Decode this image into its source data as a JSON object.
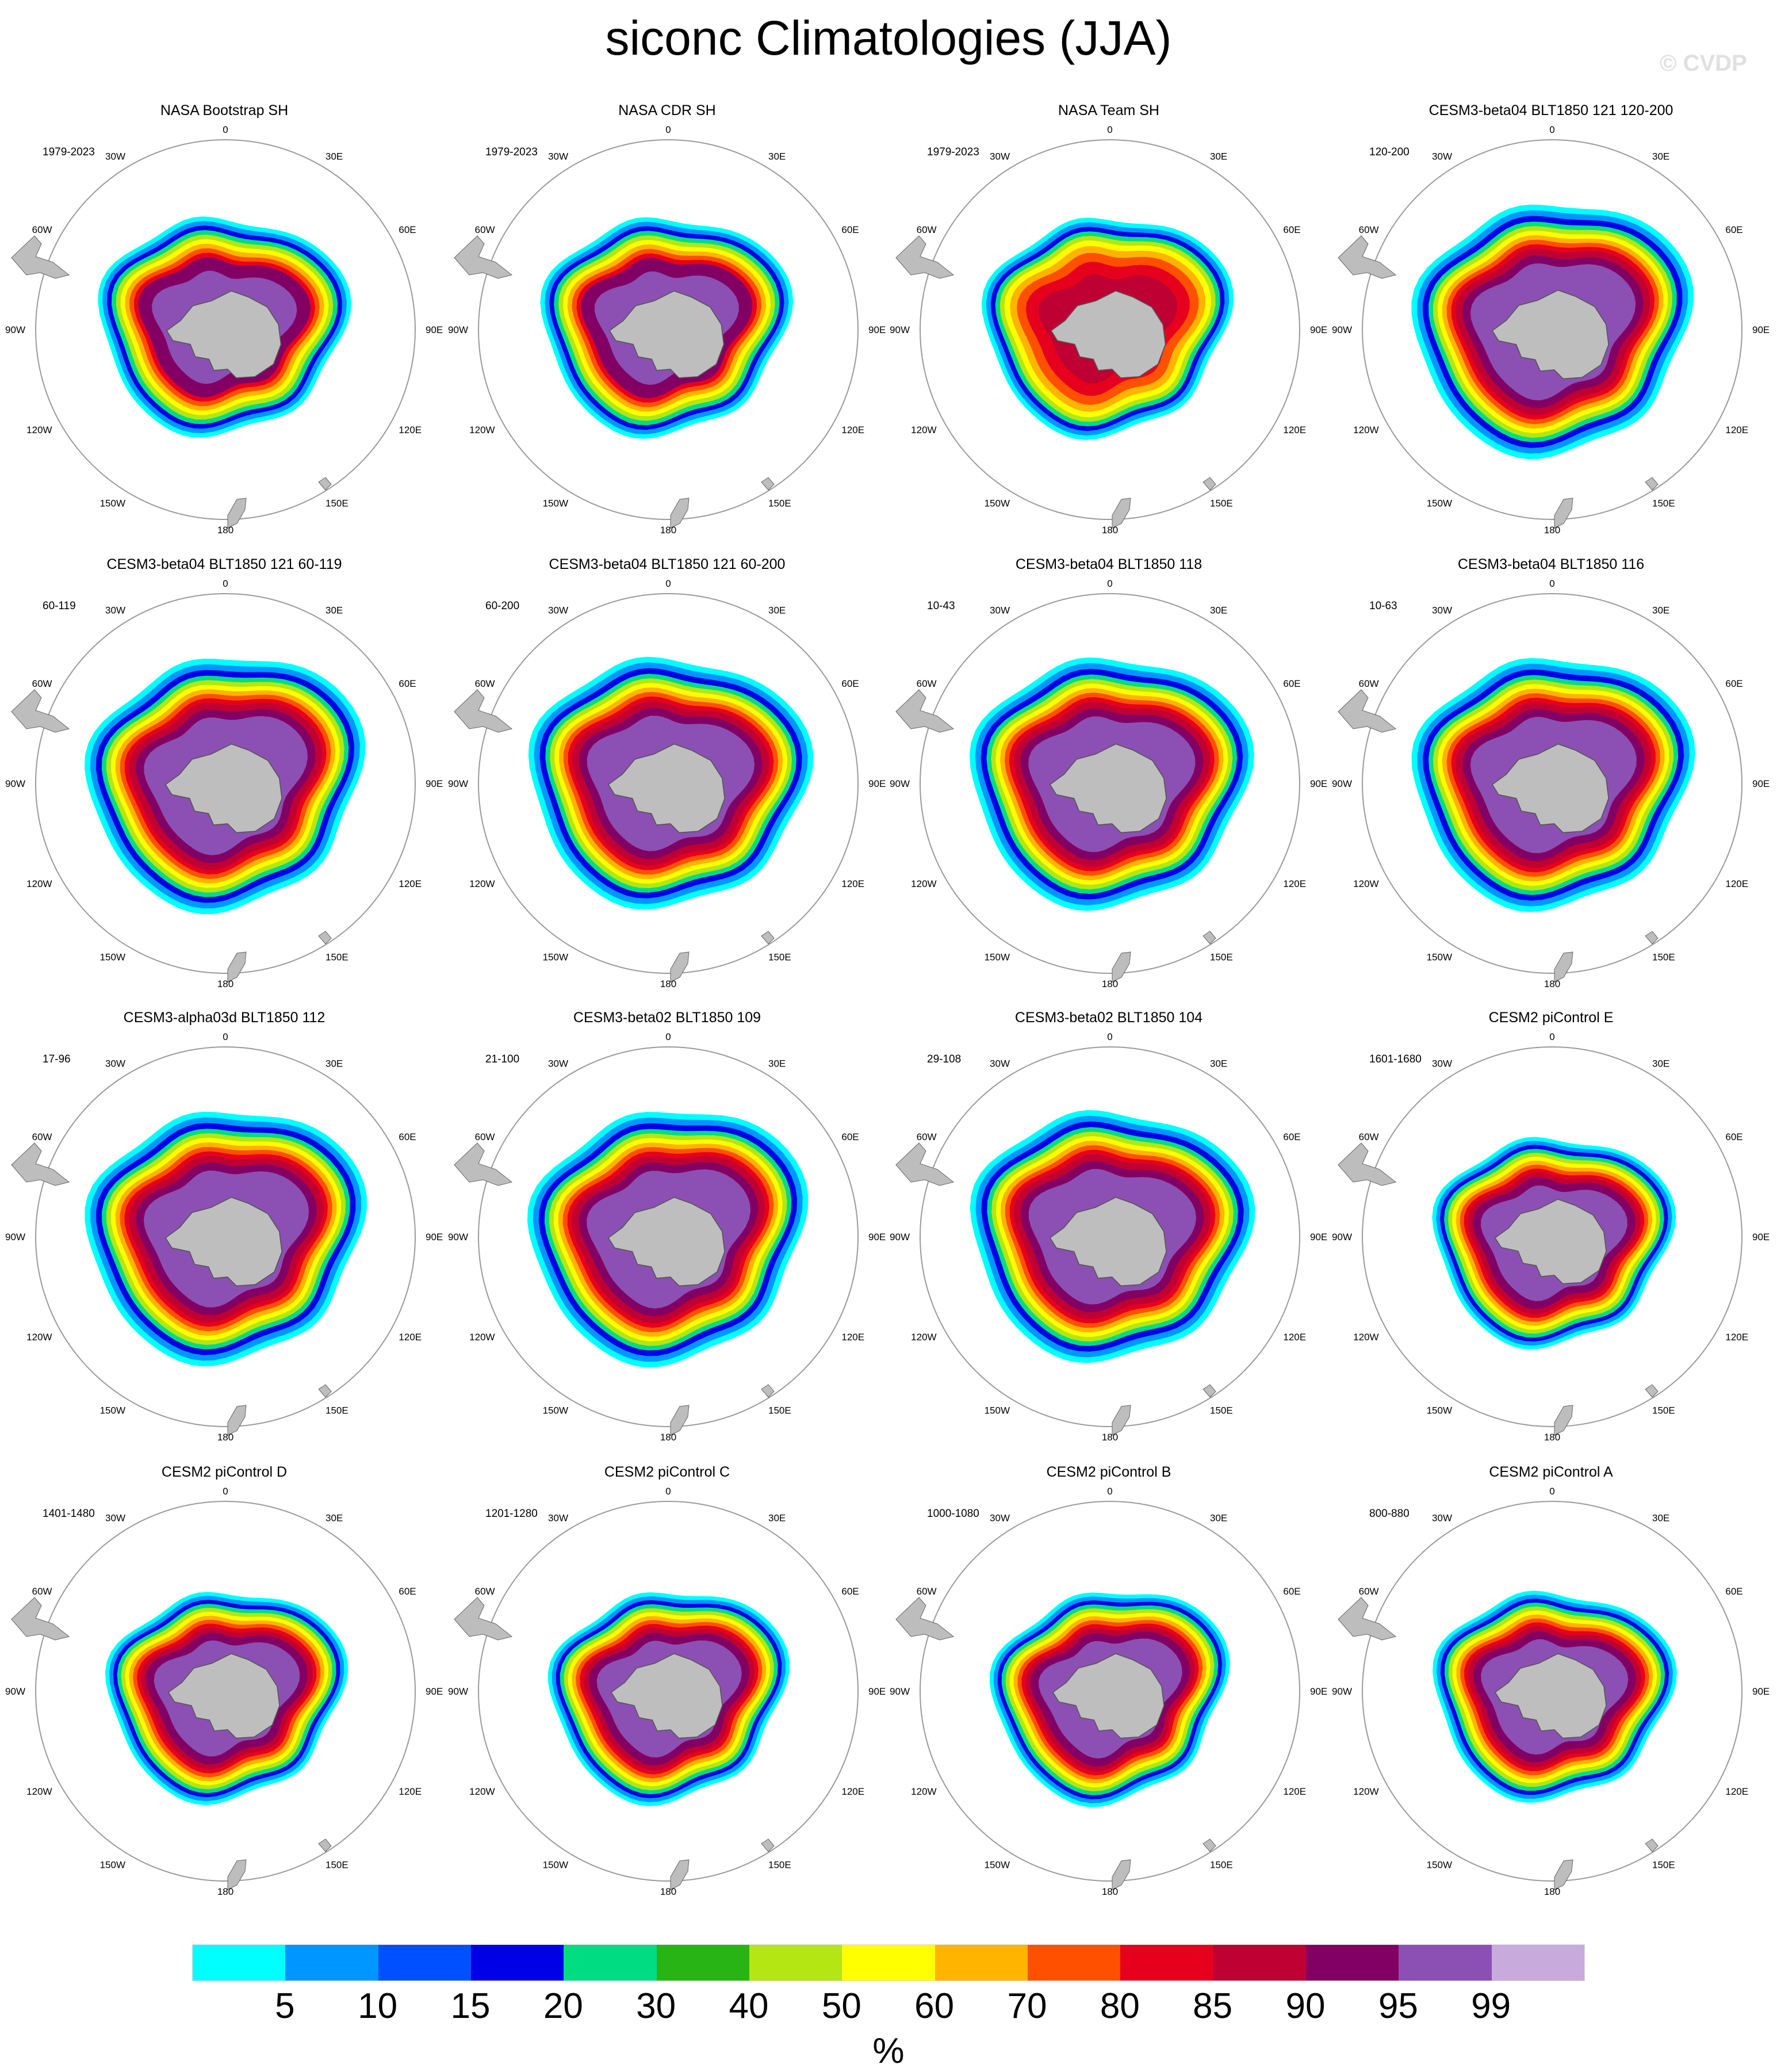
{
  "title": "siconc Climatologies (JJA)",
  "watermark": "© CVDP",
  "lon_labels": [
    "0",
    "30E",
    "60E",
    "90E",
    "120E",
    "150E",
    "180",
    "150W",
    "120W",
    "90W",
    "60W",
    "30W"
  ],
  "panels": [
    {
      "title": "NASA Bootstrap SH",
      "years": "1979-2023",
      "variant": "obs"
    },
    {
      "title": "NASA CDR SH",
      "years": "1979-2023",
      "variant": "obs"
    },
    {
      "title": "NASA Team SH",
      "years": "1979-2023",
      "variant": "team"
    },
    {
      "title": "CESM3-beta04 BLT1850 121 120-200",
      "years": "120-200",
      "variant": "cesm3"
    },
    {
      "title": "CESM3-beta04 BLT1850 121 60-119",
      "years": "60-119",
      "variant": "cesm3"
    },
    {
      "title": "CESM3-beta04 BLT1850 121 60-200",
      "years": "60-200",
      "variant": "cesm3"
    },
    {
      "title": "CESM3-beta04 BLT1850 118",
      "years": "10-43",
      "variant": "cesm3"
    },
    {
      "title": "CESM3-beta04 BLT1850 116",
      "years": "10-63",
      "variant": "cesm3"
    },
    {
      "title": "CESM3-alpha03d BLT1850 112",
      "years": "17-96",
      "variant": "cesm3"
    },
    {
      "title": "CESM3-beta02 BLT1850 109",
      "years": "21-100",
      "variant": "cesm3"
    },
    {
      "title": "CESM3-beta02 BLT1850 104",
      "years": "29-108",
      "variant": "cesm3"
    },
    {
      "title": "CESM2 piControl E",
      "years": "1601-1680",
      "variant": "cesm2"
    },
    {
      "title": "CESM2 piControl D",
      "years": "1401-1480",
      "variant": "cesm2"
    },
    {
      "title": "CESM2 piControl C",
      "years": "1201-1280",
      "variant": "cesm2"
    },
    {
      "title": "CESM2 piControl B",
      "years": "1000-1080",
      "variant": "cesm2"
    },
    {
      "title": "CESM2 piControl A",
      "years": "800-880",
      "variant": "cesm2"
    }
  ],
  "colorbar": {
    "unit": "%",
    "labels": [
      "5",
      "10",
      "15",
      "20",
      "30",
      "40",
      "50",
      "60",
      "70",
      "80",
      "85",
      "90",
      "95",
      "99"
    ],
    "colors": [
      "#00ffff",
      "#0096ff",
      "#0050ff",
      "#0000e6",
      "#00dc82",
      "#28b414",
      "#b4e614",
      "#ffff00",
      "#ffb400",
      "#ff5000",
      "#e6001e",
      "#be0032",
      "#820064",
      "#8c50b4",
      "#c8aadc"
    ]
  }
}
